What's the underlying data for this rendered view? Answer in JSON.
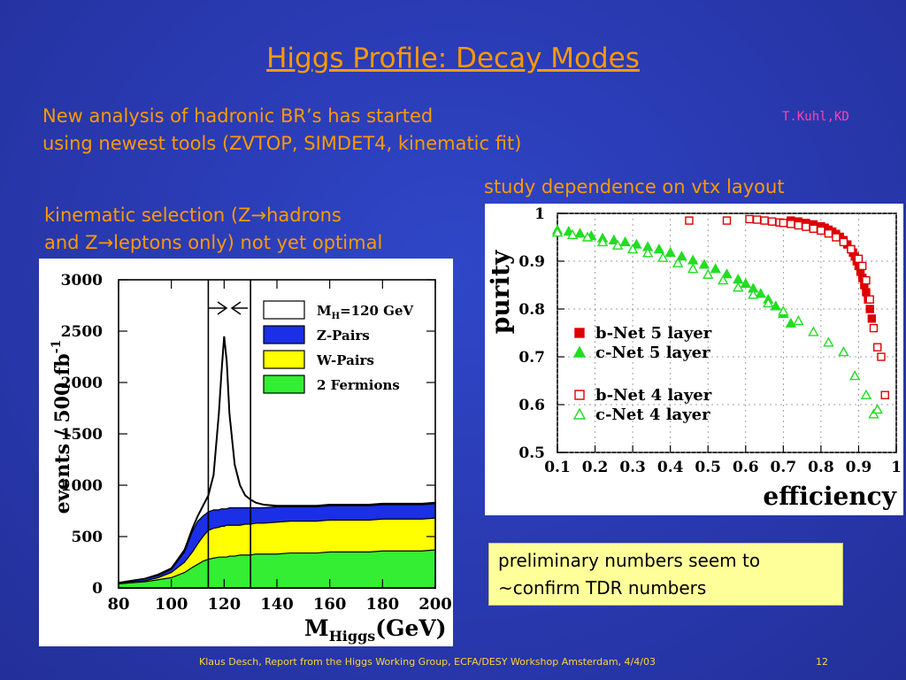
{
  "slide": {
    "title": "Higgs Profile: Decay Modes",
    "intro_line1": "New analysis of hadronic BR’s has started",
    "intro_line2": "using newest tools (ZVTOP, SIMDET4, kinematic fit)",
    "author": "T.Kuhl,KD",
    "right_heading": "study dependence on vtx layout",
    "left_heading_line1": "kinematic selection (Z→hadrons",
    "left_heading_line2": "and Z→leptons only) not yet optimal",
    "note_line1": "preliminary numbers seem to",
    "note_line2": "~confirm TDR numbers",
    "footer": "Klaus Desch, Report from the Higgs Working Group, ECFA/DESY Workshop Amsterdam, 4/4/03",
    "page_number": "12"
  },
  "chart_data": [
    {
      "type": "area",
      "xlabel": "M",
      "xlabel_sub": "Higgs",
      "xlabel_unit": "(GeV)",
      "ylabel": "events / 500 fb",
      "ylabel_sup": "-1",
      "xlim": [
        80,
        200
      ],
      "ylim": [
        0,
        3000
      ],
      "x_ticks": [
        "80",
        "100",
        "120",
        "140",
        "160",
        "180",
        "200"
      ],
      "y_ticks": [
        "0",
        "500",
        "1000",
        "1500",
        "2000",
        "2500",
        "3000"
      ],
      "window_lines": [
        114,
        130
      ],
      "legend": [
        {
          "label": "M",
          "sub": "H",
          "rest": "=120 GeV",
          "color": "#ffffff"
        },
        {
          "label": "Z-Pairs",
          "color": "#1a2fe6"
        },
        {
          "label": "W-Pairs",
          "color": "#ffff00"
        },
        {
          "label": "2 Fermions",
          "color": "#33ee33"
        }
      ],
      "x": [
        80,
        85,
        90,
        95,
        100,
        105,
        108,
        110,
        112,
        114,
        116,
        118,
        119,
        120,
        121,
        122,
        124,
        126,
        128,
        130,
        132,
        135,
        140,
        145,
        150,
        155,
        160,
        165,
        170,
        175,
        180,
        185,
        190,
        195,
        200
      ],
      "series": [
        {
          "name": "2 Fermions",
          "values": [
            40,
            50,
            60,
            80,
            100,
            150,
            200,
            230,
            260,
            280,
            290,
            300,
            300,
            300,
            300,
            310,
            310,
            320,
            320,
            320,
            330,
            330,
            330,
            340,
            340,
            340,
            350,
            350,
            350,
            350,
            360,
            360,
            360,
            360,
            370
          ]
        },
        {
          "name": "W-Pairs",
          "values": [
            40,
            60,
            70,
            100,
            150,
            250,
            350,
            430,
            500,
            560,
            580,
            590,
            600,
            600,
            610,
            610,
            610,
            610,
            620,
            620,
            630,
            630,
            640,
            650,
            650,
            650,
            660,
            660,
            660,
            660,
            670,
            670,
            670,
            670,
            680
          ]
        },
        {
          "name": "Z-Pairs",
          "values": [
            50,
            70,
            90,
            120,
            180,
            350,
            550,
            650,
            700,
            740,
            760,
            760,
            770,
            770,
            770,
            780,
            780,
            780,
            780,
            780,
            780,
            780,
            790,
            790,
            790,
            790,
            800,
            800,
            800,
            800,
            810,
            810,
            810,
            810,
            820
          ]
        },
        {
          "name": "M_H=120 GeV",
          "values": [
            50,
            70,
            90,
            130,
            190,
            370,
            580,
            700,
            800,
            900,
            1100,
            1700,
            2100,
            2450,
            2200,
            1700,
            1200,
            1000,
            900,
            860,
            830,
            810,
            800,
            800,
            800,
            800,
            810,
            810,
            810,
            810,
            820,
            820,
            820,
            820,
            830
          ]
        }
      ]
    },
    {
      "type": "scatter",
      "xlabel": "efficiency",
      "ylabel": "purity",
      "xlim": [
        0.1,
        1.0
      ],
      "ylim": [
        0.5,
        1.0
      ],
      "x_ticks": [
        "0.1",
        "0.2",
        "0.3",
        "0.4",
        "0.5",
        "0.6",
        "0.7",
        "0.8",
        "0.9",
        "1"
      ],
      "y_ticks": [
        "0.5",
        "0.6",
        "0.7",
        "0.8",
        "0.9",
        "1"
      ],
      "series": [
        {
          "name": "b-Net 5 layer",
          "marker": "filled-square",
          "color": "#dd0000",
          "x": [
            0.72,
            0.74,
            0.76,
            0.78,
            0.8,
            0.81,
            0.82,
            0.83,
            0.84,
            0.85,
            0.86,
            0.87,
            0.88,
            0.885,
            0.89,
            0.895,
            0.9,
            0.905,
            0.91,
            0.915,
            0.92,
            0.925,
            0.93,
            0.935
          ],
          "y": [
            0.985,
            0.983,
            0.98,
            0.977,
            0.973,
            0.97,
            0.966,
            0.962,
            0.957,
            0.951,
            0.944,
            0.935,
            0.925,
            0.918,
            0.91,
            0.9,
            0.89,
            0.878,
            0.865,
            0.85,
            0.835,
            0.82,
            0.8,
            0.78
          ]
        },
        {
          "name": "c-Net 5 layer",
          "marker": "filled-triangle",
          "color": "#22dd22",
          "x": [
            0.1,
            0.13,
            0.16,
            0.19,
            0.22,
            0.25,
            0.28,
            0.31,
            0.34,
            0.37,
            0.4,
            0.43,
            0.46,
            0.49,
            0.52,
            0.55,
            0.58,
            0.6,
            0.62,
            0.64,
            0.66,
            0.68,
            0.7,
            0.72
          ],
          "y": [
            0.965,
            0.962,
            0.958,
            0.953,
            0.948,
            0.944,
            0.94,
            0.935,
            0.93,
            0.925,
            0.918,
            0.91,
            0.902,
            0.893,
            0.884,
            0.873,
            0.862,
            0.853,
            0.843,
            0.832,
            0.82,
            0.806,
            0.79,
            0.77
          ]
        },
        {
          "name": "b-Net 4 layer",
          "marker": "open-square",
          "color": "#dd0000",
          "x": [
            0.45,
            0.55,
            0.61,
            0.63,
            0.65,
            0.67,
            0.69,
            0.7,
            0.72,
            0.74,
            0.76,
            0.78,
            0.8,
            0.82,
            0.84,
            0.86,
            0.88,
            0.9,
            0.91,
            0.92,
            0.93,
            0.94,
            0.95,
            0.96,
            0.97
          ],
          "y": [
            0.985,
            0.985,
            0.988,
            0.987,
            0.985,
            0.983,
            0.981,
            0.98,
            0.978,
            0.975,
            0.972,
            0.968,
            0.964,
            0.958,
            0.95,
            0.94,
            0.925,
            0.905,
            0.89,
            0.86,
            0.82,
            0.76,
            0.72,
            0.7,
            0.62
          ]
        },
        {
          "name": "c-Net 4 layer",
          "marker": "open-triangle",
          "color": "#22dd22",
          "x": [
            0.1,
            0.14,
            0.18,
            0.22,
            0.26,
            0.3,
            0.34,
            0.38,
            0.42,
            0.46,
            0.5,
            0.54,
            0.58,
            0.62,
            0.66,
            0.7,
            0.74,
            0.78,
            0.82,
            0.86,
            0.89,
            0.92,
            0.94,
            0.95
          ],
          "y": [
            0.96,
            0.955,
            0.95,
            0.94,
            0.933,
            0.925,
            0.917,
            0.907,
            0.896,
            0.884,
            0.872,
            0.86,
            0.845,
            0.83,
            0.812,
            0.795,
            0.775,
            0.752,
            0.73,
            0.71,
            0.66,
            0.62,
            0.58,
            0.59
          ]
        }
      ]
    }
  ]
}
